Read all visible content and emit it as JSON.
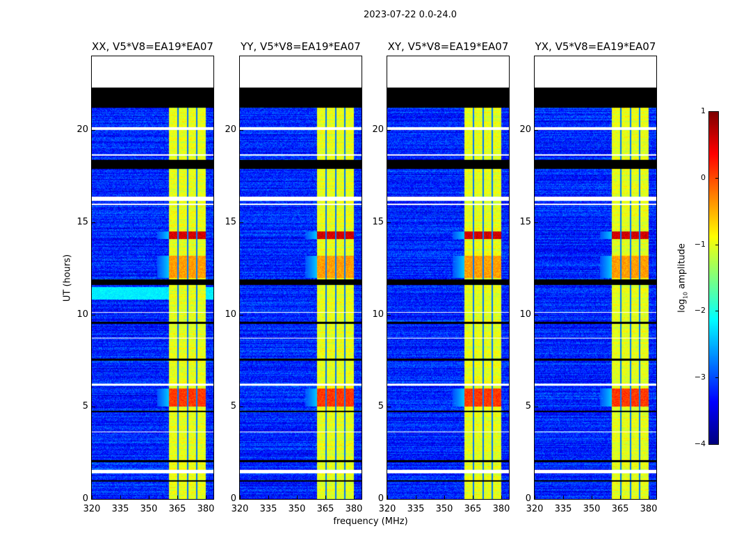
{
  "chart_data": {
    "type": "heatmap",
    "title": "2023-07-22 0.0-24.0",
    "xlabel": "frequency (MHz)",
    "ylabel": "UT (hours)",
    "xlim": [
      320,
      384
    ],
    "ylim": [
      0,
      24
    ],
    "xticks": [
      "320",
      "335",
      "350",
      "365",
      "380"
    ],
    "xtick_values": [
      320,
      335,
      350,
      365,
      380
    ],
    "yticks": [
      "0",
      "5",
      "10",
      "15",
      "20"
    ],
    "ytick_values": [
      0,
      5,
      10,
      15,
      20
    ],
    "panels": [
      {
        "title": "XX, V5*V8=EA19*EA07"
      },
      {
        "title": "YY, V5*V8=EA19*EA07"
      },
      {
        "title": "XY, V5*V8=EA19*EA07"
      },
      {
        "title": "YX, V5*V8=EA19*EA07"
      }
    ],
    "colorbar": {
      "label_prefix": "log",
      "label_sub": "10",
      "label_suffix": " amplitude",
      "range": [
        -4,
        1
      ],
      "ticks": [
        "1",
        "0",
        "−1",
        "−2",
        "−3",
        "−4"
      ],
      "tick_values": [
        1,
        0,
        -1,
        -2,
        -3,
        -4
      ],
      "colormap": "jet"
    },
    "background_level": -3.2,
    "rfi_band_mhz": [
      360.5,
      380
    ],
    "rfi_subband_gaps_mhz": [
      365.5,
      370.5,
      375.2
    ],
    "rfi_band_level": -1.0,
    "strong_rfi_hours": [
      [
        14.1,
        14.5,
        0.6
      ],
      [
        5.0,
        6.0,
        0.1
      ],
      [
        12.0,
        13.2,
        -0.4
      ]
    ],
    "flagged_black_hours": [
      [
        21.2,
        22.3
      ],
      [
        17.9,
        18.4
      ],
      [
        11.6,
        11.9
      ],
      [
        9.5,
        9.6
      ],
      [
        7.5,
        7.6
      ],
      [
        4.7,
        4.8
      ],
      [
        2.0,
        2.1
      ],
      [
        0.95,
        1.0
      ]
    ],
    "flagged_white_hours": [
      [
        22.3,
        24.0
      ],
      [
        20.0,
        20.15
      ],
      [
        16.15,
        16.4
      ],
      [
        6.15,
        6.25
      ],
      [
        1.4,
        1.6
      ],
      [
        15.95,
        16.0
      ],
      [
        18.6,
        18.7
      ],
      [
        3.6,
        3.65
      ],
      [
        8.7,
        8.75
      ],
      [
        10.1,
        10.15
      ]
    ]
  }
}
